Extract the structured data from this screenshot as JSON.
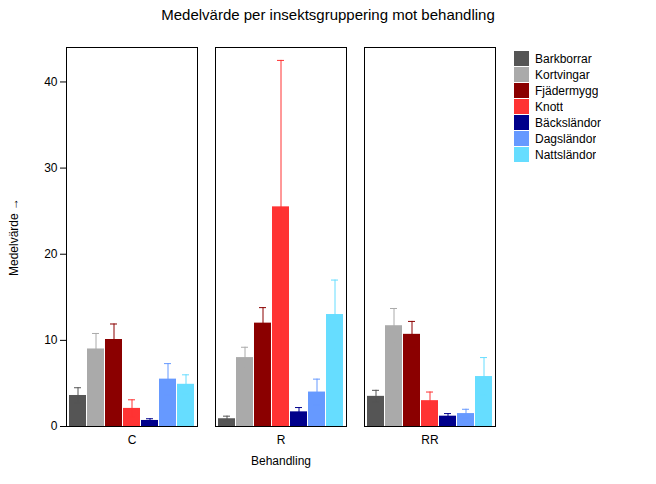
{
  "chart_data": {
    "type": "bar",
    "title": "Medelvärde per insektsgruppering mot behandling",
    "xlabel": "Behandling",
    "ylabel": "Medelvärde",
    "categories": [
      "C",
      "R",
      "RR"
    ],
    "series": [
      {
        "name": "Barkborrar",
        "color": "#555555",
        "values": [
          3.6,
          0.9,
          3.5
        ],
        "errors": [
          0.9,
          0.3,
          0.7
        ]
      },
      {
        "name": "Kortvingar",
        "color": "#aaaaaa",
        "values": [
          9.0,
          8.0,
          11.7
        ],
        "errors": [
          1.8,
          1.2,
          2.0
        ]
      },
      {
        "name": "Fjädermygg",
        "color": "#8b0000",
        "values": [
          10.1,
          12.0,
          10.7
        ],
        "errors": [
          1.8,
          1.8,
          1.5
        ]
      },
      {
        "name": "Knott",
        "color": "#ff3333",
        "values": [
          2.1,
          25.5,
          3.0
        ],
        "errors": [
          1.0,
          17.0,
          1.0
        ]
      },
      {
        "name": "Bäcksländor",
        "color": "#00008b",
        "values": [
          0.7,
          1.7,
          1.2
        ],
        "errors": [
          0.2,
          0.5,
          0.3
        ]
      },
      {
        "name": "Dagsländor",
        "color": "#6699ff",
        "values": [
          5.5,
          4.0,
          1.5
        ],
        "errors": [
          1.8,
          1.5,
          0.5
        ]
      },
      {
        "name": "Nattsländor",
        "color": "#66ddff",
        "values": [
          4.9,
          13.0,
          5.8
        ],
        "errors": [
          1.1,
          4.0,
          2.2
        ]
      }
    ],
    "ylim": [
      0,
      44
    ],
    "yticks": [
      0,
      10,
      20,
      30,
      40
    ],
    "grid": false,
    "legend": "right"
  }
}
